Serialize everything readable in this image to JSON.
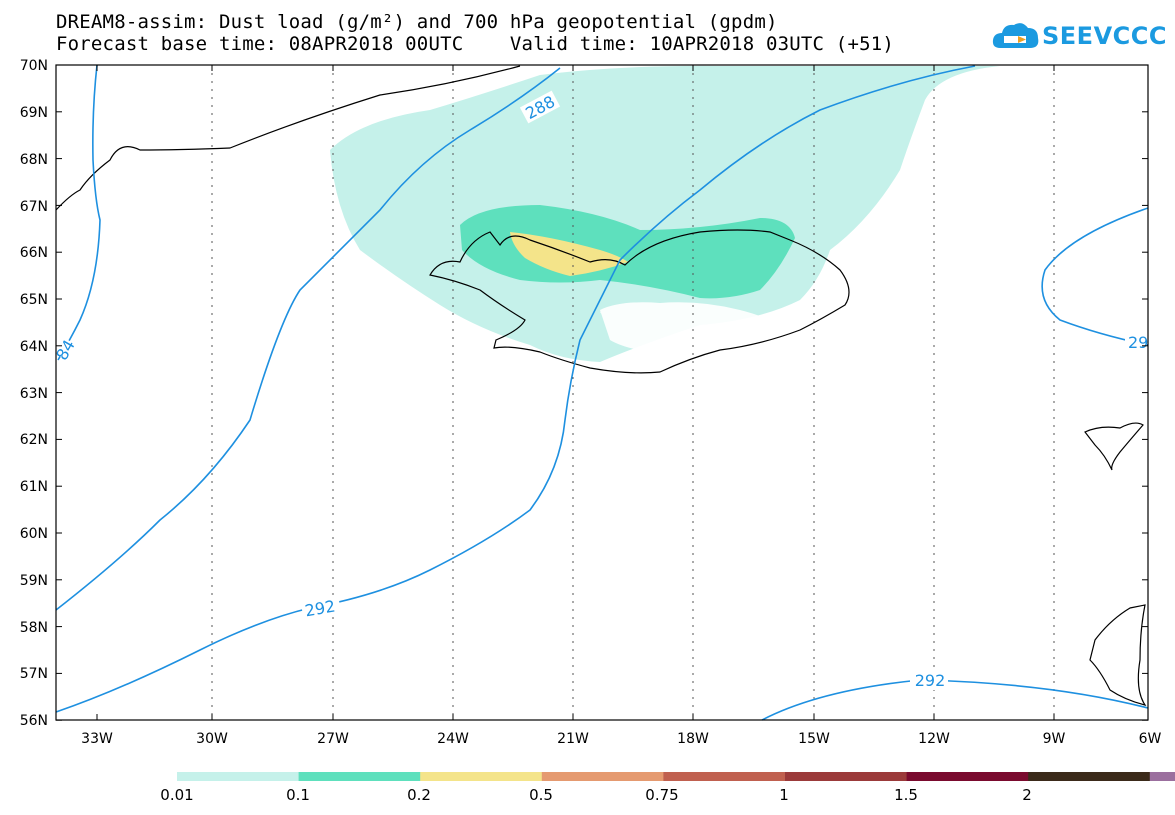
{
  "header": {
    "title_line1": "DREAM8-assim: Dust load (g/m²) and 700 hPa geopotential (gpdm)",
    "title_line2": "Forecast base time: 08APR2018 00UTC    Valid time: 10APR2018 03UTC (+51)"
  },
  "logo": {
    "text": "SEEVCCC",
    "color": "#1b9ae0"
  },
  "axes": {
    "lat_labels": [
      "70N",
      "69N",
      "68N",
      "67N",
      "66N",
      "65N",
      "64N",
      "63N",
      "62N",
      "61N",
      "60N",
      "59N",
      "58N",
      "57N",
      "56N"
    ],
    "lon_labels": [
      "33W",
      "30W",
      "27W",
      "24W",
      "21W",
      "18W",
      "15W",
      "12W",
      "9W",
      "6W"
    ]
  },
  "contours": {
    "labels": [
      "288",
      "292",
      "292",
      "29",
      "84"
    ],
    "color": "#1e90e0"
  },
  "colorbar": {
    "labels": [
      "0.01",
      "0.1",
      "0.2",
      "0.5",
      "0.75",
      "1",
      "1.5",
      "2"
    ],
    "colors": [
      "#c5f1ea",
      "#5ee0bd",
      "#f4e48a",
      "#e59a70",
      "#c0604f",
      "#9b3a3a",
      "#7a0a2e",
      "#3b2a1a",
      "#9b6f9e"
    ]
  }
}
